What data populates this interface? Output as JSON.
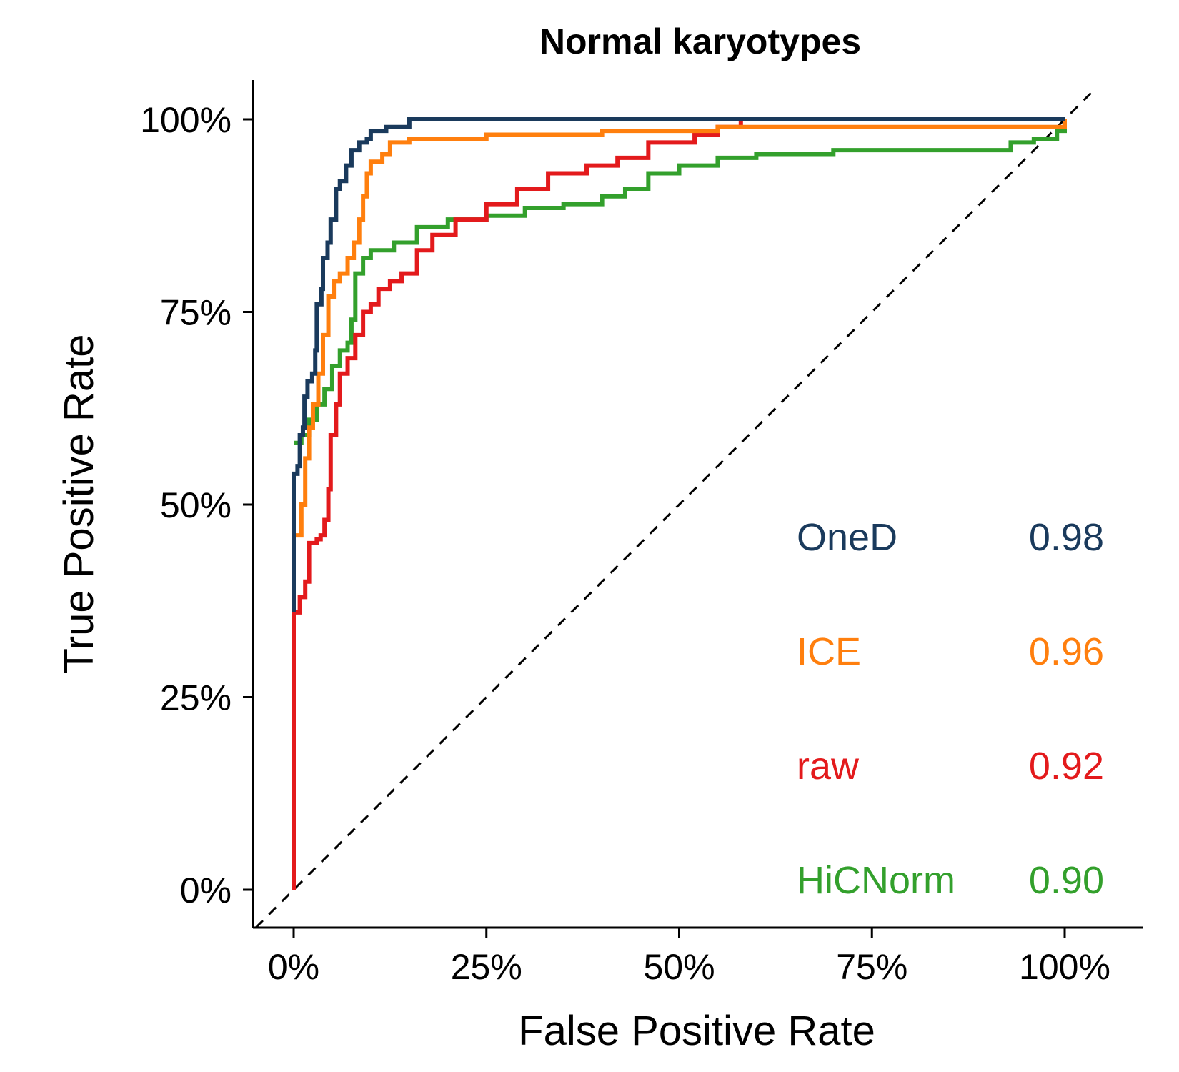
{
  "chart_data": {
    "type": "line",
    "title": "Normal karyotypes",
    "xlabel": "False Positive Rate",
    "ylabel": "True Positive Rate",
    "xlim": [
      0,
      1
    ],
    "ylim": [
      0,
      1
    ],
    "x_ticks": [
      0,
      0.25,
      0.5,
      0.75,
      1.0
    ],
    "x_tick_labels": [
      "0%",
      "25%",
      "50%",
      "75%",
      "100%"
    ],
    "y_ticks": [
      0,
      0.25,
      0.5,
      0.75,
      1.0
    ],
    "y_tick_labels": [
      "0%",
      "25%",
      "50%",
      "75%",
      "100%"
    ],
    "reference_line": "diagonal dashed",
    "grid": false,
    "legend_placement": "bottom-right",
    "series": [
      {
        "name": "OneD",
        "auc": "0.98",
        "color": "#1a3a5c",
        "points": [
          [
            0,
            0.36
          ],
          [
            0,
            0.54
          ],
          [
            0.005,
            0.55
          ],
          [
            0.008,
            0.59
          ],
          [
            0.012,
            0.6
          ],
          [
            0.014,
            0.64
          ],
          [
            0.018,
            0.66
          ],
          [
            0.024,
            0.67
          ],
          [
            0.028,
            0.7
          ],
          [
            0.03,
            0.76
          ],
          [
            0.036,
            0.78
          ],
          [
            0.038,
            0.82
          ],
          [
            0.044,
            0.84
          ],
          [
            0.048,
            0.87
          ],
          [
            0.055,
            0.91
          ],
          [
            0.06,
            0.92
          ],
          [
            0.068,
            0.94
          ],
          [
            0.075,
            0.96
          ],
          [
            0.085,
            0.97
          ],
          [
            0.095,
            0.975
          ],
          [
            0.1,
            0.985
          ],
          [
            0.12,
            0.99
          ],
          [
            0.15,
            1.0
          ],
          [
            0.3,
            1.0
          ],
          [
            0.6,
            1.0
          ],
          [
            1.0,
            1.0
          ]
        ]
      },
      {
        "name": "ICE",
        "auc": "0.96",
        "color": "#ff7f0e",
        "points": [
          [
            0,
            0.46
          ],
          [
            0.01,
            0.5
          ],
          [
            0.015,
            0.56
          ],
          [
            0.02,
            0.6
          ],
          [
            0.025,
            0.63
          ],
          [
            0.032,
            0.67
          ],
          [
            0.038,
            0.72
          ],
          [
            0.045,
            0.77
          ],
          [
            0.052,
            0.79
          ],
          [
            0.06,
            0.8
          ],
          [
            0.07,
            0.82
          ],
          [
            0.078,
            0.84
          ],
          [
            0.085,
            0.87
          ],
          [
            0.09,
            0.9
          ],
          [
            0.095,
            0.93
          ],
          [
            0.1,
            0.945
          ],
          [
            0.115,
            0.955
          ],
          [
            0.125,
            0.97
          ],
          [
            0.15,
            0.975
          ],
          [
            0.25,
            0.98
          ],
          [
            0.4,
            0.985
          ],
          [
            0.55,
            0.99
          ],
          [
            0.8,
            0.99
          ],
          [
            1.0,
            1.0
          ]
        ]
      },
      {
        "name": "raw",
        "auc": "0.92",
        "color": "#e31a1c",
        "points": [
          [
            0,
            0
          ],
          [
            0,
            0.36
          ],
          [
            0.008,
            0.38
          ],
          [
            0.015,
            0.4
          ],
          [
            0.02,
            0.45
          ],
          [
            0.03,
            0.455
          ],
          [
            0.035,
            0.46
          ],
          [
            0.04,
            0.48
          ],
          [
            0.045,
            0.52
          ],
          [
            0.048,
            0.59
          ],
          [
            0.055,
            0.63
          ],
          [
            0.06,
            0.67
          ],
          [
            0.07,
            0.69
          ],
          [
            0.08,
            0.72
          ],
          [
            0.09,
            0.75
          ],
          [
            0.1,
            0.76
          ],
          [
            0.11,
            0.78
          ],
          [
            0.125,
            0.79
          ],
          [
            0.14,
            0.8
          ],
          [
            0.16,
            0.83
          ],
          [
            0.18,
            0.85
          ],
          [
            0.21,
            0.87
          ],
          [
            0.25,
            0.89
          ],
          [
            0.29,
            0.91
          ],
          [
            0.33,
            0.93
          ],
          [
            0.38,
            0.94
          ],
          [
            0.42,
            0.95
          ],
          [
            0.46,
            0.97
          ],
          [
            0.52,
            0.98
          ],
          [
            0.55,
            0.99
          ],
          [
            0.58,
            1.0
          ],
          [
            0.8,
            1.0
          ],
          [
            1.0,
            1.0
          ]
        ]
      },
      {
        "name": "HiCNorm",
        "auc": "0.90",
        "color": "#33a02c",
        "points": [
          [
            0,
            0.58
          ],
          [
            0.01,
            0.59
          ],
          [
            0.02,
            0.61
          ],
          [
            0.03,
            0.63
          ],
          [
            0.04,
            0.65
          ],
          [
            0.05,
            0.68
          ],
          [
            0.06,
            0.7
          ],
          [
            0.07,
            0.71
          ],
          [
            0.075,
            0.74
          ],
          [
            0.08,
            0.8
          ],
          [
            0.09,
            0.82
          ],
          [
            0.1,
            0.83
          ],
          [
            0.13,
            0.84
          ],
          [
            0.16,
            0.86
          ],
          [
            0.2,
            0.87
          ],
          [
            0.25,
            0.875
          ],
          [
            0.3,
            0.885
          ],
          [
            0.35,
            0.89
          ],
          [
            0.4,
            0.9
          ],
          [
            0.43,
            0.91
          ],
          [
            0.46,
            0.93
          ],
          [
            0.5,
            0.94
          ],
          [
            0.55,
            0.95
          ],
          [
            0.6,
            0.955
          ],
          [
            0.7,
            0.96
          ],
          [
            0.8,
            0.96
          ],
          [
            0.9,
            0.96
          ],
          [
            0.93,
            0.97
          ],
          [
            0.96,
            0.975
          ],
          [
            0.99,
            0.985
          ],
          [
            1.0,
            1.0
          ]
        ]
      }
    ]
  }
}
